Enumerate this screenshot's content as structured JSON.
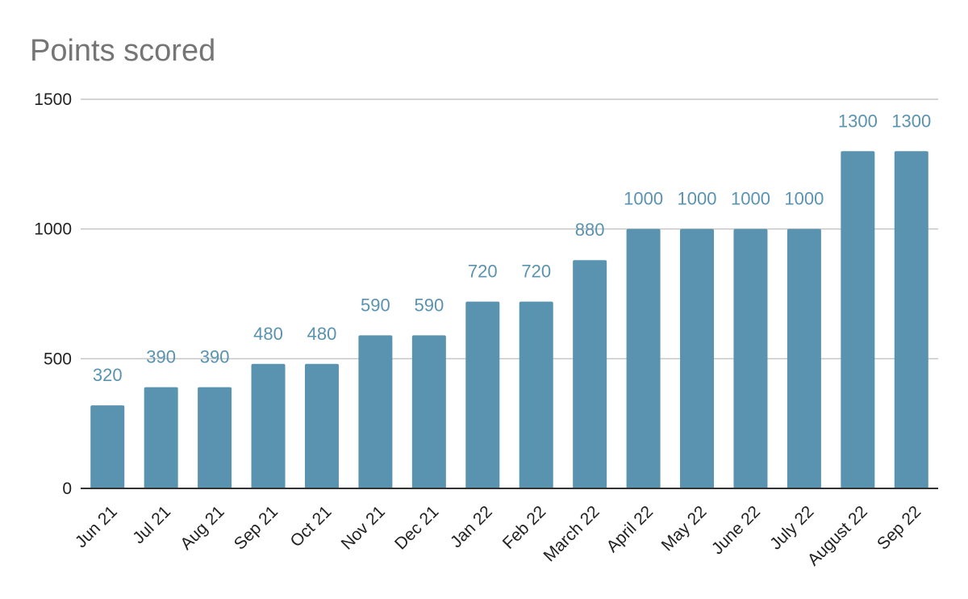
{
  "chart_data": {
    "type": "bar",
    "title": "Points scored",
    "categories": [
      "Jun 21",
      "Jul 21",
      "Aug 21",
      "Sep 21",
      "Oct 21",
      "Nov 21",
      "Dec 21",
      "Jan 22",
      "Feb 22",
      "March 22",
      "April 22",
      "May 22",
      "June 22",
      "July 22",
      "August 22",
      "Sep 22"
    ],
    "values": [
      320,
      390,
      390,
      480,
      480,
      590,
      590,
      720,
      720,
      880,
      1000,
      1000,
      1000,
      1000,
      1300,
      1300
    ],
    "data_labels": [
      "320",
      "390",
      "390",
      "480",
      "480",
      "590",
      "590",
      "720",
      "720",
      "880",
      "1000",
      "1000",
      "1000",
      "1000",
      "1300",
      "1300"
    ],
    "xlabel": "",
    "ylabel": "",
    "ylim": [
      0,
      1500
    ],
    "y_ticks": [
      0,
      500,
      1000,
      1500
    ],
    "y_tick_labels": [
      "0",
      "500",
      "1000",
      "1500"
    ],
    "grid": true,
    "legend": "none",
    "bar_color": "#5a93b0",
    "label_color": "#5a93b0"
  }
}
